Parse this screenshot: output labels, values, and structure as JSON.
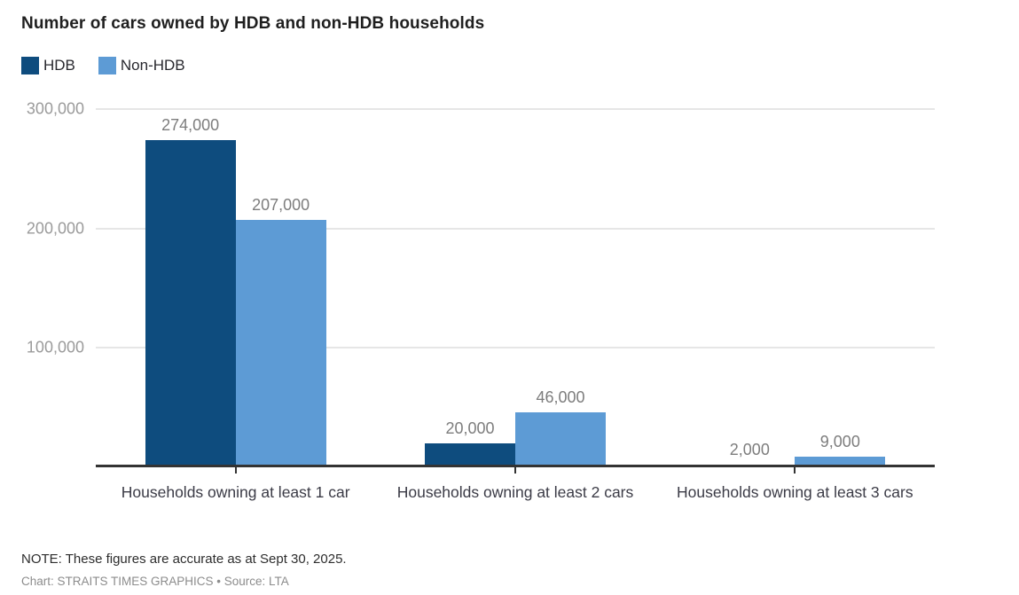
{
  "chart_data": {
    "type": "bar",
    "title": "Number of cars owned by HDB and non-HDB households",
    "categories": [
      "Households owning at least 1 car",
      "Households owning at least 2 cars",
      "Households owning at least 3 cars"
    ],
    "series": [
      {
        "name": "HDB",
        "color": "#0e4c7e",
        "values": [
          274000,
          20000,
          2000
        ],
        "value_labels": [
          "274,000",
          "20,000",
          "2,000"
        ]
      },
      {
        "name": "Non-HDB",
        "color": "#5d9bd5",
        "values": [
          207000,
          46000,
          9000
        ],
        "value_labels": [
          "207,000",
          "46,000",
          "9,000"
        ]
      }
    ],
    "y_ticks": [
      {
        "value": 100000,
        "label": "100,000"
      },
      {
        "value": 200000,
        "label": "200,000"
      },
      {
        "value": 300000,
        "label": "300,000"
      }
    ],
    "ylim": [
      0,
      300000
    ],
    "grid": "horizontal",
    "legend_position": "top-left",
    "note": "NOTE: These figures are accurate as at Sept 30, 2025.",
    "credit": "Chart: STRAITS TIMES GRAPHICS • Source: LTA"
  },
  "colors": {
    "axis": "#333333",
    "gridline": "#e6e6e6",
    "value_label": "#7d7d7d",
    "ytick_label": "#9b9b9b"
  }
}
